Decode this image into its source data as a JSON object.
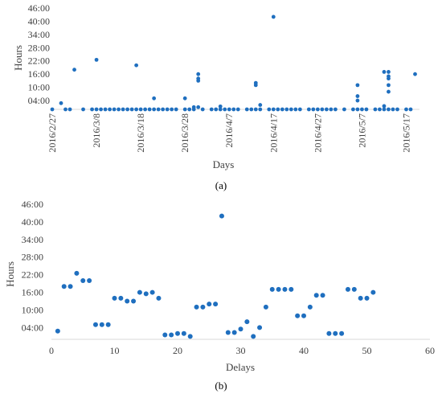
{
  "marker_color": "#1f6fbf",
  "axis_color": "#d9d9d9",
  "chart_data": [
    {
      "type": "scatter",
      "panel_label": "(a)",
      "xlabel": "Days",
      "ylabel": "Hours",
      "x_ticks": [
        "2016/2/27",
        "2016/3/8",
        "2016/3/18",
        "2016/3/28",
        "2016/4/7",
        "2016/4/17",
        "2016/4/27",
        "2016/5/7",
        "2016/5/17"
      ],
      "y_ticks": [
        "04:00",
        "10:00",
        "16:00",
        "22:00",
        "28:00",
        "34:00",
        "40:00",
        "46:00"
      ],
      "xlim": [
        "2016-02-27",
        "2016-05-20"
      ],
      "ylim": [
        "00:00",
        "46:00"
      ],
      "grid": false,
      "points": [
        [
          "2016-02-27",
          "00:00"
        ],
        [
          "2016-02-29",
          "02:48"
        ],
        [
          "2016-03-01",
          "00:00"
        ],
        [
          "2016-03-02",
          "00:00"
        ],
        [
          "2016-03-03",
          "18:00"
        ],
        [
          "2016-03-05",
          "00:00"
        ],
        [
          "2016-03-07",
          "00:00"
        ],
        [
          "2016-03-08",
          "00:00"
        ],
        [
          "2016-03-08",
          "22:30"
        ],
        [
          "2016-03-09",
          "00:00"
        ],
        [
          "2016-03-10",
          "00:00"
        ],
        [
          "2016-03-11",
          "00:00"
        ],
        [
          "2016-03-12",
          "00:00"
        ],
        [
          "2016-03-13",
          "00:00"
        ],
        [
          "2016-03-14",
          "00:00"
        ],
        [
          "2016-03-15",
          "00:00"
        ],
        [
          "2016-03-16",
          "00:00"
        ],
        [
          "2016-03-17",
          "00:00"
        ],
        [
          "2016-03-17",
          "20:00"
        ],
        [
          "2016-03-18",
          "00:00"
        ],
        [
          "2016-03-19",
          "00:00"
        ],
        [
          "2016-03-20",
          "00:00"
        ],
        [
          "2016-03-21",
          "00:00"
        ],
        [
          "2016-03-21",
          "05:00"
        ],
        [
          "2016-03-22",
          "00:00"
        ],
        [
          "2016-03-23",
          "00:00"
        ],
        [
          "2016-03-24",
          "00:00"
        ],
        [
          "2016-03-25",
          "00:00"
        ],
        [
          "2016-03-26",
          "00:00"
        ],
        [
          "2016-03-28",
          "00:00"
        ],
        [
          "2016-03-28",
          "05:00"
        ],
        [
          "2016-03-29",
          "00:00"
        ],
        [
          "2016-03-30",
          "00:00"
        ],
        [
          "2016-03-30",
          "01:00"
        ],
        [
          "2016-03-31",
          "01:00"
        ],
        [
          "2016-03-31",
          "13:00"
        ],
        [
          "2016-03-31",
          "14:00"
        ],
        [
          "2016-03-31",
          "16:00"
        ],
        [
          "2016-04-01",
          "00:00"
        ],
        [
          "2016-04-03",
          "00:00"
        ],
        [
          "2016-04-04",
          "00:00"
        ],
        [
          "2016-04-05",
          "00:00"
        ],
        [
          "2016-04-05",
          "01:20"
        ],
        [
          "2016-04-06",
          "00:00"
        ],
        [
          "2016-04-07",
          "00:00"
        ],
        [
          "2016-04-08",
          "00:00"
        ],
        [
          "2016-04-09",
          "00:00"
        ],
        [
          "2016-04-11",
          "00:00"
        ],
        [
          "2016-04-12",
          "00:00"
        ],
        [
          "2016-04-13",
          "00:00"
        ],
        [
          "2016-04-13",
          "11:00"
        ],
        [
          "2016-04-13",
          "12:00"
        ],
        [
          "2016-04-14",
          "00:00"
        ],
        [
          "2016-04-14",
          "02:00"
        ],
        [
          "2016-04-16",
          "00:00"
        ],
        [
          "2016-04-17",
          "00:00"
        ],
        [
          "2016-04-17",
          "42:00"
        ],
        [
          "2016-04-18",
          "00:00"
        ],
        [
          "2016-04-19",
          "00:00"
        ],
        [
          "2016-04-20",
          "00:00"
        ],
        [
          "2016-04-21",
          "00:00"
        ],
        [
          "2016-04-22",
          "00:00"
        ],
        [
          "2016-04-23",
          "00:00"
        ],
        [
          "2016-04-25",
          "00:00"
        ],
        [
          "2016-04-26",
          "00:00"
        ],
        [
          "2016-04-27",
          "00:00"
        ],
        [
          "2016-04-28",
          "00:00"
        ],
        [
          "2016-04-29",
          "00:00"
        ],
        [
          "2016-04-30",
          "00:00"
        ],
        [
          "2016-05-01",
          "00:00"
        ],
        [
          "2016-05-03",
          "00:00"
        ],
        [
          "2016-05-05",
          "00:00"
        ],
        [
          "2016-05-06",
          "00:00"
        ],
        [
          "2016-05-06",
          "04:00"
        ],
        [
          "2016-05-06",
          "06:00"
        ],
        [
          "2016-05-06",
          "11:00"
        ],
        [
          "2016-05-07",
          "00:00"
        ],
        [
          "2016-05-08",
          "00:00"
        ],
        [
          "2016-05-10",
          "00:00"
        ],
        [
          "2016-05-11",
          "00:00"
        ],
        [
          "2016-05-12",
          "00:00"
        ],
        [
          "2016-05-12",
          "01:30"
        ],
        [
          "2016-05-12",
          "17:00"
        ],
        [
          "2016-05-13",
          "00:00"
        ],
        [
          "2016-05-13",
          "08:00"
        ],
        [
          "2016-05-13",
          "11:00"
        ],
        [
          "2016-05-13",
          "14:00"
        ],
        [
          "2016-05-13",
          "15:00"
        ],
        [
          "2016-05-13",
          "17:00"
        ],
        [
          "2016-05-14",
          "00:00"
        ],
        [
          "2016-05-15",
          "00:00"
        ],
        [
          "2016-05-17",
          "00:00"
        ],
        [
          "2016-05-18",
          "00:00"
        ],
        [
          "2016-05-19",
          "16:00"
        ]
      ]
    },
    {
      "type": "scatter",
      "panel_label": "(b)",
      "xlabel": "Delays",
      "ylabel": "Hours",
      "x_ticks": [
        "0",
        "10",
        "20",
        "30",
        "40",
        "50",
        "60"
      ],
      "y_ticks": [
        "04:00",
        "10:00",
        "16:00",
        "22:00",
        "28:00",
        "34:00",
        "40:00",
        "46:00"
      ],
      "xlim": [
        0,
        60
      ],
      "ylim": [
        "00:00",
        "46:00"
      ],
      "grid": false,
      "points": [
        [
          1,
          "02:48"
        ],
        [
          2,
          "18:00"
        ],
        [
          3,
          "18:00"
        ],
        [
          4,
          "22:30"
        ],
        [
          5,
          "20:00"
        ],
        [
          6,
          "20:00"
        ],
        [
          7,
          "05:00"
        ],
        [
          8,
          "05:00"
        ],
        [
          9,
          "05:00"
        ],
        [
          10,
          "14:00"
        ],
        [
          11,
          "14:00"
        ],
        [
          12,
          "13:00"
        ],
        [
          13,
          "13:00"
        ],
        [
          14,
          "16:00"
        ],
        [
          15,
          "15:30"
        ],
        [
          16,
          "16:00"
        ],
        [
          17,
          "14:00"
        ],
        [
          18,
          "01:30"
        ],
        [
          19,
          "01:30"
        ],
        [
          20,
          "02:00"
        ],
        [
          21,
          "02:00"
        ],
        [
          22,
          "01:00"
        ],
        [
          23,
          "11:00"
        ],
        [
          24,
          "11:00"
        ],
        [
          25,
          "12:00"
        ],
        [
          26,
          "12:00"
        ],
        [
          27,
          "42:00"
        ],
        [
          28,
          "02:20"
        ],
        [
          29,
          "02:20"
        ],
        [
          30,
          "03:30"
        ],
        [
          31,
          "06:00"
        ],
        [
          32,
          "01:00"
        ],
        [
          33,
          "04:00"
        ],
        [
          34,
          "11:00"
        ],
        [
          35,
          "17:00"
        ],
        [
          36,
          "17:00"
        ],
        [
          37,
          "17:00"
        ],
        [
          38,
          "17:00"
        ],
        [
          39,
          "08:00"
        ],
        [
          40,
          "08:00"
        ],
        [
          41,
          "11:00"
        ],
        [
          42,
          "15:00"
        ],
        [
          43,
          "15:00"
        ],
        [
          44,
          "02:00"
        ],
        [
          45,
          "02:00"
        ],
        [
          46,
          "02:00"
        ],
        [
          47,
          "17:00"
        ],
        [
          48,
          "17:00"
        ],
        [
          49,
          "14:00"
        ],
        [
          50,
          "14:00"
        ],
        [
          51,
          "16:00"
        ]
      ]
    }
  ]
}
